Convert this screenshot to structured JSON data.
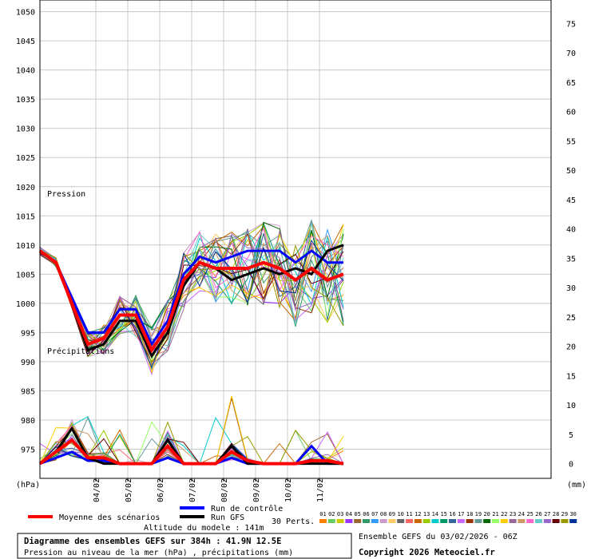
{
  "chart_data": {
    "type": "line",
    "title": "Diagramme des ensembles GEFS sur 384h : 41.9N 12.5E",
    "subtitle": "Pression au niveau de la mer (hPa) , précipitations (mm)",
    "left_axis": {
      "unit_label": "(hPa)",
      "range": [
        970,
        1052
      ],
      "ticks": [
        975,
        980,
        985,
        990,
        995,
        1000,
        1005,
        1010,
        1015,
        1020,
        1025,
        1030,
        1035,
        1040,
        1045,
        1050
      ]
    },
    "right_axis": {
      "unit_label": "(mm)",
      "range": [
        -2.5,
        79
      ],
      "ticks": [
        0,
        5,
        10,
        15,
        20,
        25,
        30,
        35,
        40,
        45,
        50,
        55,
        60,
        65,
        70,
        75
      ]
    },
    "x_axis": {
      "unit": "hours",
      "range": [
        0,
        384
      ],
      "tick_labels": [
        "04/02",
        "05/02",
        "06/02",
        "07/02",
        "08/02",
        "09/02",
        "10/02",
        "11/02"
      ],
      "tick_hours": [
        42,
        66,
        90,
        114,
        138,
        162,
        186,
        210
      ]
    },
    "x_hours": [
      0,
      12,
      24,
      36,
      48,
      60,
      72,
      84,
      96,
      108,
      120,
      132,
      144,
      156,
      168,
      180,
      192,
      204,
      216,
      228
    ],
    "series": [
      {
        "name": "Moyenne des scénarios",
        "quantity": "pressure",
        "color": "#ff0000",
        "values": [
          1009,
          1007,
          1000,
          993,
          994,
          998,
          998,
          992,
          996,
          1004,
          1007,
          1006,
          1006,
          1006,
          1007,
          1006,
          1004,
          1006,
          1004,
          1005
        ]
      },
      {
        "name": "Run de contrôle",
        "quantity": "pressure",
        "color": "#0000ff",
        "values": [
          1009,
          1007,
          1001,
          995,
          995,
          999,
          999,
          993,
          997,
          1005,
          1008,
          1007,
          1008,
          1009,
          1009,
          1009,
          1007,
          1009,
          1007,
          1007
        ]
      },
      {
        "name": "Run GFS",
        "quantity": "pressure",
        "color": "#000000",
        "values": [
          1009,
          1007,
          1000,
          992,
          993,
          997,
          997,
          991,
          995,
          1003,
          1007,
          1006,
          1004,
          1005,
          1006,
          1005,
          1006,
          1005,
          1009,
          1010
        ]
      },
      {
        "name": "Moyenne des scénarios",
        "quantity": "precipitation",
        "color": "#ff0000",
        "values": [
          0,
          2,
          4,
          1,
          1,
          0,
          0,
          0,
          3,
          0,
          0,
          0,
          2,
          0.5,
          0,
          0,
          0,
          0.5,
          0.5,
          0
        ]
      },
      {
        "name": "Run de contrôle",
        "quantity": "precipitation",
        "color": "#0000ff",
        "values": [
          0,
          1,
          2,
          0.5,
          0.5,
          0,
          0,
          0,
          1,
          0,
          0,
          0,
          1,
          0,
          0,
          0,
          0,
          3,
          0,
          0
        ]
      },
      {
        "name": "Run GFS",
        "quantity": "precipitation",
        "color": "#000000",
        "values": [
          0,
          2,
          6,
          1,
          0,
          0,
          0,
          0,
          4,
          0,
          0,
          0,
          3,
          0,
          0,
          0,
          0,
          0,
          0,
          0
        ]
      }
    ],
    "members_label": "30 Perts.",
    "member_ids": [
      "01",
      "02",
      "03",
      "04",
      "05",
      "06",
      "07",
      "08",
      "09",
      "10",
      "11",
      "12",
      "13",
      "14",
      "15",
      "16",
      "17",
      "18",
      "19",
      "20",
      "21",
      "22",
      "23",
      "24",
      "25",
      "26",
      "27",
      "28",
      "29",
      "30"
    ],
    "member_colors": [
      "#ff8000",
      "#66cc66",
      "#cccc00",
      "#9933ff",
      "#996633",
      "#339966",
      "#3399ff",
      "#cc99cc",
      "#ffcc66",
      "#666666",
      "#ff6666",
      "#cc6600",
      "#99cc00",
      "#00cccc",
      "#009966",
      "#336699",
      "#cc66ff",
      "#993300",
      "#669999",
      "#006600",
      "#99ff66",
      "#ffcc00",
      "#996699",
      "#cc9966",
      "#ff66cc",
      "#66cccc",
      "#9966cc",
      "#660000",
      "#999900",
      "#003399"
    ],
    "annotations": [
      "Pression",
      "Précipitations"
    ],
    "grid": true
  },
  "legend": {
    "mean": "Moyenne des scénarios",
    "control": "Run de contrôle",
    "gfs": "Run GFS"
  },
  "footer": {
    "altitude": "Altitude du modele : 141m",
    "title": "Diagramme des ensembles GEFS sur 384h : 41.9N 12.5E",
    "subtitle": "Pression au niveau de la mer (hPa) , précipitations (mm)",
    "run_info": "Ensemble GEFS du 03/02/2026 - 06Z",
    "copyright": "Copyright 2026 Meteociel.fr"
  }
}
